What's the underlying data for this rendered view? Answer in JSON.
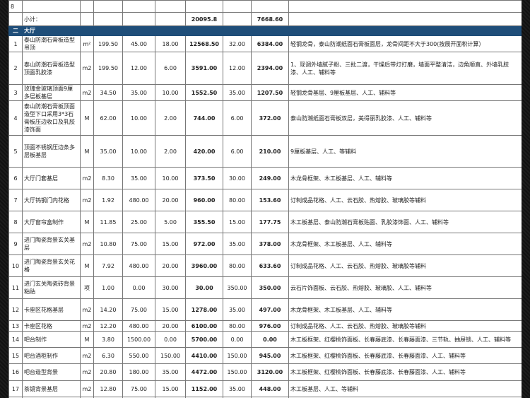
{
  "top_row": {
    "no": "8"
  },
  "subtotal": {
    "label": "小计：",
    "total": "20095.8",
    "sub2": "7668.60"
  },
  "section": {
    "no": "二",
    "title": "大厅"
  },
  "rows": [
    {
      "no": "1",
      "name": "泰山防潮石膏板造型吊顶",
      "unit": "m²",
      "qty": "199.50",
      "c1": "45.00",
      "c2": "18.00",
      "total": "12568.50",
      "c3": "32.00",
      "c4": "6384.00",
      "desc": "轻钢龙骨，泰山防潮纸面石膏板面层，龙骨间距不大于300(按展开面积计算）"
    },
    {
      "no": "2",
      "name": "泰山防潮石膏板造型顶面乳胶漆",
      "unit": "m2",
      "qty": "199.50",
      "c1": "12.00",
      "c2": "6.00",
      "total": "3591.00",
      "c3": "12.00",
      "c4": "2394.00",
      "desc": "1、现调外墙腻子粉、三批二渡，干燥后带灯打磨，墙面平整清洁，边角顺直、外墙乳胶漆、人工、辅料等"
    },
    {
      "no": "3",
      "name": "玫瑰金玻璃顶面9厘多层板基层",
      "unit": "m2",
      "qty": "34.50",
      "c1": "35.00",
      "c2": "10.00",
      "total": "1552.50",
      "c3": "35.00",
      "c4": "1207.50",
      "desc": "轻钢龙骨基层、9厘板基层、人工、辅料等"
    },
    {
      "no": "4",
      "name": "泰山防潮石膏板顶面造型下口采用3*3石膏板压边收口及乳胶漆饰面",
      "unit": "M",
      "qty": "62.00",
      "c1": "10.00",
      "c2": "2.00",
      "total": "744.00",
      "c3": "6.00",
      "c4": "372.00",
      "desc": "泰山防潮纸面石膏板双层，美得丽乳胶漆、人工、辅料等"
    },
    {
      "no": "5",
      "name": "顶面不锈钢压边条多层板基层",
      "unit": "M",
      "qty": "35.00",
      "c1": "10.00",
      "c2": "2.00",
      "total": "420.00",
      "c3": "6.00",
      "c4": "210.00",
      "desc": "9厘板基层、人工、等辅料"
    },
    {
      "no": "6",
      "name": "大厅门套基层",
      "unit": "m2",
      "qty": "8.30",
      "c1": "35.00",
      "c2": "10.00",
      "total": "373.50",
      "c3": "30.00",
      "c4": "249.00",
      "desc": "木龙骨框架、木工板基层、人工、辅料等"
    },
    {
      "no": "7",
      "name": "大厅钨钢门内花格",
      "unit": "m2",
      "qty": "1.92",
      "c1": "480.00",
      "c2": "20.00",
      "total": "960.00",
      "c3": "80.00",
      "c4": "153.60",
      "desc": "订制成品花格、人工、云石胶、热熔胶、玻璃胶等辅料"
    },
    {
      "no": "8",
      "name": "大厅窗帘盒制作",
      "unit": "M",
      "qty": "11.85",
      "c1": "25.00",
      "c2": "5.00",
      "total": "355.50",
      "c3": "15.00",
      "c4": "177.75",
      "desc": "木工板基层、泰山防潮石膏板贴面、乳胶漆饰面、人工、辅料等"
    },
    {
      "no": "9",
      "name": "进门陶瓷背景玄关基层",
      "unit": "m2",
      "qty": "10.80",
      "c1": "75.00",
      "c2": "15.00",
      "total": "972.00",
      "c3": "35.00",
      "c4": "378.00",
      "desc": "木龙骨框架、木工板基层、人工、辅料等"
    },
    {
      "no": "10",
      "name": "进门陶瓷背景玄关花格",
      "unit": "M",
      "qty": "7.92",
      "c1": "480.00",
      "c2": "20.00",
      "total": "3960.00",
      "c3": "80.00",
      "c4": "633.60",
      "desc": "订制成品花格、人工、云石胶、热熔胶、玻璃胶等辅料"
    },
    {
      "no": "11",
      "name": "进门玄关陶瓷砖背景粘贴",
      "unit": "项",
      "qty": "1.00",
      "c1": "0.00",
      "c2": "30.00",
      "total": "30.00",
      "c3": "350.00",
      "c4": "350.00",
      "desc": "云石片饰面板、云石胶、热熔胶、玻璃胶、人工、辅料等"
    },
    {
      "no": "12",
      "name": "卡座区花格基层",
      "unit": "m2",
      "qty": "14.20",
      "c1": "75.00",
      "c2": "15.00",
      "total": "1278.00",
      "c3": "35.00",
      "c4": "497.00",
      "desc": "木龙骨框架、木工板基层、人工、辅料等"
    },
    {
      "no": "13",
      "name": "卡座区花格",
      "unit": "m2",
      "qty": "12.20",
      "c1": "480.00",
      "c2": "20.00",
      "total": "6100.00",
      "c3": "80.00",
      "c4": "976.00",
      "desc": "订制成品花格、人工、云石胶、热熔胶、玻璃胶等辅料"
    },
    {
      "no": "14",
      "name": "吧台制作",
      "unit": "M",
      "qty": "3.80",
      "c1": "1500.00",
      "c2": "0.00",
      "total": "5700.00",
      "c3": "0.00",
      "c4": "0.00",
      "desc": "木工板框架、红樱桃饰面板、长春藤底漆、长春藤面漆、三节轨、抽屉锁、人工、辅料等"
    },
    {
      "no": "15",
      "name": "吧台酒柜制作",
      "unit": "m2",
      "qty": "6.30",
      "c1": "550.00",
      "c2": "150.00",
      "total": "4410.00",
      "c3": "150.00",
      "c4": "945.00",
      "desc": "木工板框架、红樱桃饰面板、长春藤底漆、长春藤面漆、人工、辅料等"
    },
    {
      "no": "16",
      "name": "吧台造型背景",
      "unit": "m2",
      "qty": "20.80",
      "c1": "180.00",
      "c2": "35.00",
      "total": "4472.00",
      "c3": "150.00",
      "c4": "3120.00",
      "desc": "木工板框架、红樱桃饰面板、长春藤底漆、长春藤面漆、人工、辅料等"
    },
    {
      "no": "17",
      "name": "茶镜背景基层",
      "unit": "m2",
      "qty": "12.80",
      "c1": "75.00",
      "c2": "15.00",
      "total": "1152.00",
      "c3": "35.00",
      "c4": "448.00",
      "desc": "木工板基层、人工、等辅料"
    }
  ],
  "colors": {
    "section_bg": "#1f4e79",
    "border": "#777777"
  }
}
